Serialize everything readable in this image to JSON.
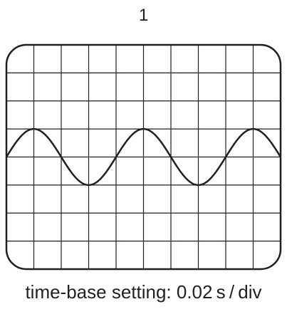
{
  "figure_label": "1",
  "caption": "time-base setting: 0.02 s / div",
  "screen": {
    "grid_columns": 10,
    "grid_rows": 8,
    "trace": {
      "shape": "sine",
      "period_divisions": 4,
      "amplitude_divisions": 1,
      "start_phase": "rising through centre line at left edge"
    }
  },
  "colors": {
    "line": "#231f20",
    "background": "#ffffff"
  }
}
